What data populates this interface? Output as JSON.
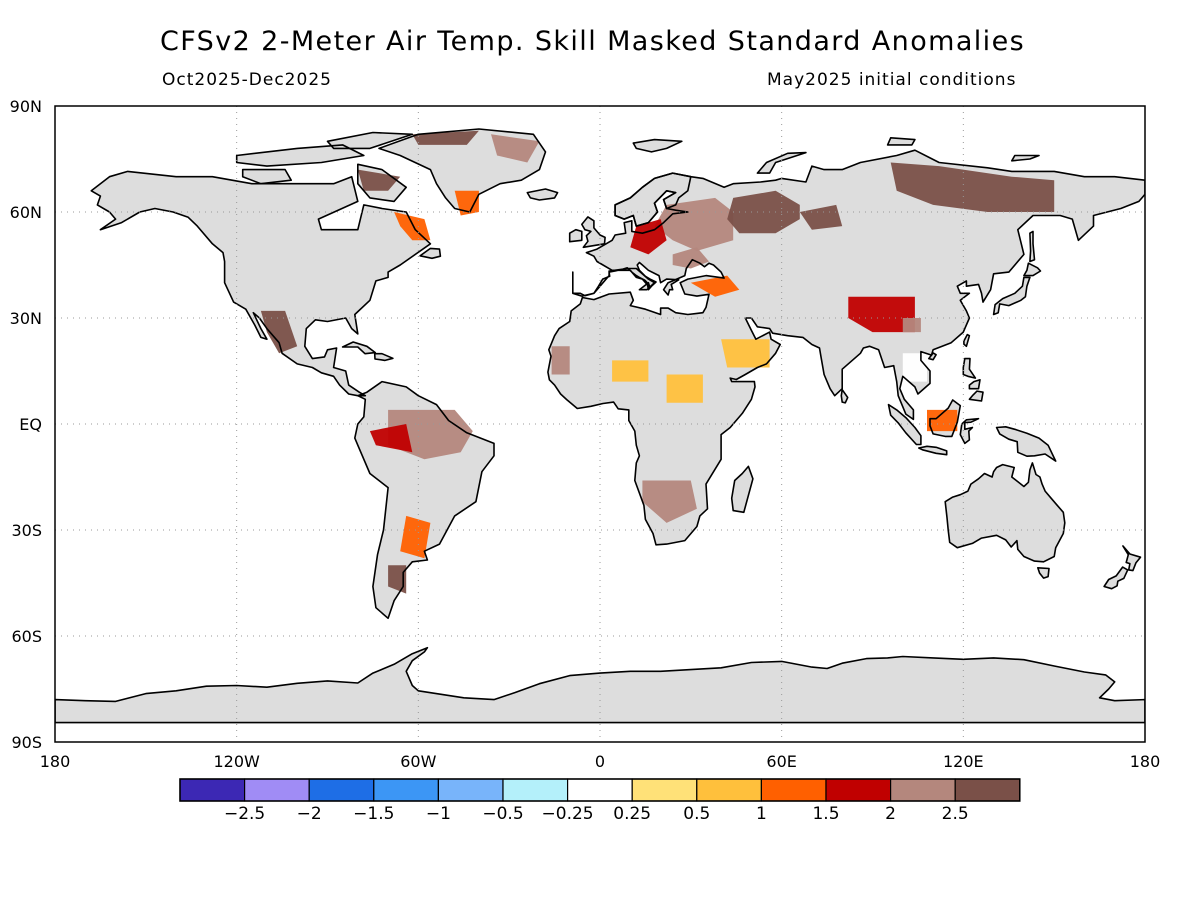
{
  "header": {
    "title": "CFSv2 2-Meter Air Temp. Skill Masked Standard Anomalies",
    "period": "Oct2025-Dec2025",
    "init": "May2025 initial conditions"
  },
  "map": {
    "projection": "equirectangular",
    "lon_range": [
      -180,
      180
    ],
    "lat_range": [
      -90,
      90
    ],
    "grid": "dotted",
    "lat_ticks": [
      {
        "lat": 90,
        "label": "90N"
      },
      {
        "lat": 60,
        "label": "60N"
      },
      {
        "lat": 30,
        "label": "30N"
      },
      {
        "lat": 0,
        "label": "EQ"
      },
      {
        "lat": -30,
        "label": "30S"
      },
      {
        "lat": -60,
        "label": "60S"
      },
      {
        "lat": -90,
        "label": "90S"
      }
    ],
    "lon_ticks": [
      {
        "lon": -180,
        "label": "180"
      },
      {
        "lon": -120,
        "label": "120W"
      },
      {
        "lon": -60,
        "label": "60W"
      },
      {
        "lon": 0,
        "label": "0"
      },
      {
        "lon": 60,
        "label": "60E"
      },
      {
        "lon": 120,
        "label": "120E"
      },
      {
        "lon": 180,
        "label": "180"
      }
    ],
    "land_color": "#dddddd",
    "coast_color": "#000000"
  },
  "colorbar": {
    "colors": [
      "#3c28b4",
      "#a08cf5",
      "#1e6ee6",
      "#3c96f5",
      "#78b4fa",
      "#b4f0fa",
      "#ffffff",
      "#ffe178",
      "#ffc03c",
      "#ff6000",
      "#c00000",
      "#b4877d",
      "#7a5048"
    ],
    "labels": [
      "-2.5",
      "-2",
      "-1.5",
      "-1",
      "-0.5",
      "-0.25",
      "0.25",
      "0.5",
      "1",
      "1.5",
      "2",
      "2.5"
    ]
  },
  "anomalies": [
    {
      "region": "European Russia",
      "poly": [
        [
          22,
          62
        ],
        [
          38,
          64
        ],
        [
          44,
          60
        ],
        [
          44,
          52
        ],
        [
          32,
          49
        ],
        [
          24,
          52
        ],
        [
          18,
          56
        ]
      ],
      "value": 2
    },
    {
      "region": "Western Siberia / Urals",
      "poly": [
        [
          44,
          64
        ],
        [
          58,
          66
        ],
        [
          66,
          62
        ],
        [
          66,
          58
        ],
        [
          58,
          54
        ],
        [
          46,
          54
        ],
        [
          42,
          58
        ]
      ],
      "value": 2.5
    },
    {
      "region": "Western Siberia",
      "poly": [
        [
          66,
          60
        ],
        [
          78,
          62
        ],
        [
          80,
          56
        ],
        [
          70,
          55
        ]
      ],
      "value": 2.5
    },
    {
      "region": "Eastern Europe",
      "poly": [
        [
          12,
          56
        ],
        [
          20,
          58
        ],
        [
          22,
          52
        ],
        [
          16,
          48
        ],
        [
          10,
          50
        ]
      ],
      "value": 1.5
    },
    {
      "region": "Black Sea region",
      "poly": [
        [
          24,
          48
        ],
        [
          32,
          50
        ],
        [
          36,
          46
        ],
        [
          30,
          44
        ],
        [
          24,
          45
        ]
      ],
      "value": 2
    },
    {
      "region": "Eastern Siberia",
      "poly": [
        [
          96,
          74
        ],
        [
          112,
          73
        ],
        [
          136,
          70
        ],
        [
          150,
          69
        ],
        [
          150,
          60
        ],
        [
          128,
          60
        ],
        [
          110,
          62
        ],
        [
          98,
          66
        ]
      ],
      "value": 3
    },
    {
      "region": "Caucasus / Turkey",
      "poly": [
        [
          30,
          40
        ],
        [
          42,
          42
        ],
        [
          46,
          38
        ],
        [
          38,
          36
        ]
      ],
      "value": 1
    },
    {
      "region": "Greenland south",
      "poly": [
        [
          -48,
          66
        ],
        [
          -40,
          66
        ],
        [
          -40,
          60
        ],
        [
          -46,
          59
        ]
      ],
      "value": 1
    },
    {
      "region": "Greenland north-east",
      "poly": [
        [
          -36,
          82
        ],
        [
          -20,
          80
        ],
        [
          -24,
          74
        ],
        [
          -34,
          76
        ]
      ],
      "value": 2
    },
    {
      "region": "Greenland north",
      "poly": [
        [
          -62,
          82
        ],
        [
          -40,
          83
        ],
        [
          -44,
          79
        ],
        [
          -60,
          79
        ]
      ],
      "value": 2.5
    },
    {
      "region": "Baffin Island",
      "poly": [
        [
          -80,
          72
        ],
        [
          -66,
          70
        ],
        [
          -70,
          66
        ],
        [
          -78,
          66
        ]
      ],
      "value": 2.5
    },
    {
      "region": "Labrador",
      "poly": [
        [
          -68,
          60
        ],
        [
          -58,
          58
        ],
        [
          -56,
          52
        ],
        [
          -62,
          52
        ],
        [
          -66,
          56
        ]
      ],
      "value": 1
    },
    {
      "region": "Amazon basin",
      "poly": [
        [
          -70,
          4
        ],
        [
          -48,
          4
        ],
        [
          -42,
          -2
        ],
        [
          -46,
          -8
        ],
        [
          -58,
          -10
        ],
        [
          -70,
          -6
        ]
      ],
      "value": 2
    },
    {
      "region": "Western Amazon",
      "poly": [
        [
          -76,
          -2
        ],
        [
          -64,
          0
        ],
        [
          -62,
          -8
        ],
        [
          -74,
          -6
        ]
      ],
      "value": 1.5
    },
    {
      "region": "Argentina",
      "poly": [
        [
          -64,
          -26
        ],
        [
          -56,
          -28
        ],
        [
          -58,
          -38
        ],
        [
          -66,
          -36
        ]
      ],
      "value": 1
    },
    {
      "region": "Patagonia",
      "poly": [
        [
          -70,
          -40
        ],
        [
          -64,
          -40
        ],
        [
          -64,
          -48
        ],
        [
          -70,
          -46
        ]
      ],
      "value": 2.5
    },
    {
      "region": "West Africa",
      "poly": [
        [
          -16,
          22
        ],
        [
          -10,
          22
        ],
        [
          -10,
          14
        ],
        [
          -16,
          14
        ]
      ],
      "value": 2
    },
    {
      "region": "Sahel",
      "poly": [
        [
          4,
          18
        ],
        [
          16,
          18
        ],
        [
          16,
          12
        ],
        [
          4,
          12
        ]
      ],
      "value": 0.5
    },
    {
      "region": "Southern Africa",
      "poly": [
        [
          14,
          -16
        ],
        [
          30,
          -16
        ],
        [
          32,
          -24
        ],
        [
          22,
          -28
        ],
        [
          14,
          -22
        ]
      ],
      "value": 2
    },
    {
      "region": "Tibet / China",
      "poly": [
        [
          82,
          36
        ],
        [
          104,
          36
        ],
        [
          104,
          26
        ],
        [
          90,
          26
        ],
        [
          82,
          30
        ]
      ],
      "value": 1.5
    },
    {
      "region": "China central",
      "poly": [
        [
          100,
          30
        ],
        [
          106,
          30
        ],
        [
          106,
          26
        ],
        [
          100,
          26
        ]
      ],
      "value": 2
    },
    {
      "region": "Borneo",
      "poly": [
        [
          108,
          4
        ],
        [
          118,
          4
        ],
        [
          118,
          -2
        ],
        [
          108,
          -2
        ]
      ],
      "value": 1
    },
    {
      "region": "Mexico",
      "poly": [
        [
          -112,
          32
        ],
        [
          -104,
          32
        ],
        [
          -100,
          22
        ],
        [
          -106,
          20
        ],
        [
          -110,
          26
        ]
      ],
      "value": 2.5
    },
    {
      "region": "Arabia",
      "poly": [
        [
          40,
          24
        ],
        [
          56,
          24
        ],
        [
          56,
          16
        ],
        [
          42,
          16
        ]
      ],
      "value": 0.5
    },
    {
      "region": "Sudan",
      "poly": [
        [
          22,
          14
        ],
        [
          34,
          14
        ],
        [
          34,
          6
        ],
        [
          22,
          6
        ]
      ],
      "value": 0.5
    },
    {
      "region": "Indochina",
      "poly": [
        [
          100,
          20
        ],
        [
          108,
          20
        ],
        [
          108,
          12
        ],
        [
          100,
          12
        ]
      ],
      "value": -0.25
    }
  ]
}
